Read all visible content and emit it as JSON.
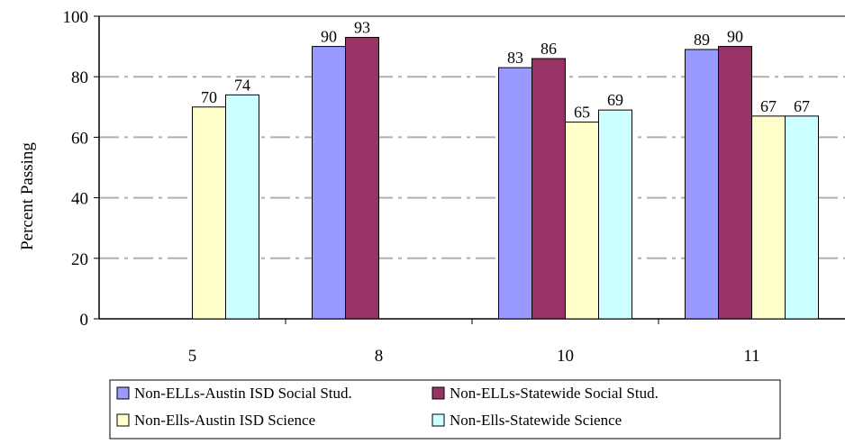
{
  "chart_data": {
    "type": "bar",
    "title": "",
    "xlabel": "",
    "ylabel": "Percent Passing",
    "ylim": [
      0,
      100
    ],
    "yticks": [
      "0",
      "20",
      "40",
      "60",
      "80",
      "100"
    ],
    "grid": true,
    "legend_position": "bottom",
    "categories": [
      "5",
      "8",
      "10",
      "11"
    ],
    "series": [
      {
        "name": "Non-ELLs-Austin ISD Social Stud.",
        "color": "#9999ff",
        "values": [
          null,
          90,
          83,
          89
        ]
      },
      {
        "name": "Non-ELLs-Statewide Social Stud.",
        "color": "#993366",
        "values": [
          null,
          93,
          86,
          90
        ]
      },
      {
        "name": "Non-Ells-Austin ISD Science",
        "color": "#ffffcc",
        "values": [
          70,
          null,
          65,
          67
        ]
      },
      {
        "name": "Non-Ells-Statewide Science",
        "color": "#ccffff",
        "values": [
          74,
          null,
          69,
          67
        ]
      }
    ]
  }
}
